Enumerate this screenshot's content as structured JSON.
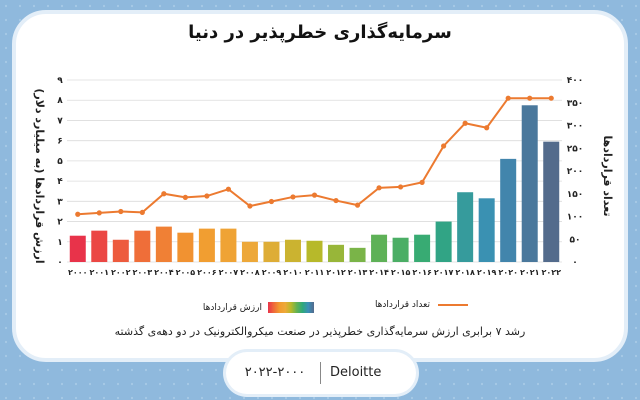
{
  "title": "سرمایه‌گذاری خطرپذیر در دنیا",
  "caption": "رشد ۷ برابری ارزش سرمایه‌گذاری خطرپذیر در صنعت میکروالکترونیک در دو دهه‌ی گذشته",
  "footer": {
    "source": "Deloitte",
    "range": "۲۰۲۲-۲۰۰۰"
  },
  "colors": {
    "background": "#8fb9dd",
    "line": "#ec7a30",
    "bar_gradient": [
      "#e8334a",
      "#ef6a3a",
      "#f29b2f",
      "#eda93a",
      "#b7b92a",
      "#63b253",
      "#2fa97a",
      "#3b8fb8",
      "#536b8c"
    ]
  },
  "chart_data": {
    "type": "bar",
    "categories": [
      "۲۰۰۰",
      "۲۰۰۱",
      "۲۰۰۲",
      "۲۰۰۳",
      "۲۰۰۴",
      "۲۰۰۵",
      "۲۰۰۶",
      "۲۰۰۷",
      "۲۰۰۸",
      "۲۰۰۹",
      "۲۰۱۰",
      "۲۰۱۱",
      "۲۰۱۲",
      "۲۰۱۳",
      "۲۰۱۴",
      "۲۰۱۵",
      "۲۰۱۶",
      "۲۰۱۷",
      "۲۰۱۸",
      "۲۰۱۹",
      "۲۰۲۰",
      "۲۰۲۱",
      "۲۰۲۲"
    ],
    "series": [
      {
        "name": "ارزش قراردادها",
        "type": "bar",
        "axis": "left",
        "values": [
          1.3,
          1.55,
          1.1,
          1.55,
          1.75,
          1.45,
          1.65,
          1.65,
          1.0,
          1.0,
          1.1,
          1.05,
          0.85,
          0.7,
          1.35,
          1.2,
          1.35,
          2.0,
          3.45,
          3.15,
          5.1,
          7.75,
          5.95
        ]
      },
      {
        "name": "تعداد قراردادها",
        "type": "line",
        "axis": "right",
        "values": [
          105,
          108,
          111,
          109,
          150,
          142,
          145,
          160,
          123,
          133,
          143,
          147,
          135,
          125,
          163,
          165,
          175,
          255,
          305,
          295,
          360,
          360,
          360
        ]
      }
    ],
    "ylabel": "ارزش قراردادها (به میلیارد دلار)",
    "ylabel_right": "تعداد قراردادها",
    "ylim": [
      0,
      9
    ],
    "ylim_right": [
      0,
      400
    ],
    "yticks": [
      "۰",
      "۱",
      "۲",
      "۳",
      "۴",
      "۵",
      "۶",
      "۷",
      "۸",
      "۹"
    ],
    "yticks_right": [
      "۰",
      "۵۰",
      "۱۰۰",
      "۱۵۰",
      "۲۰۰",
      "۲۵۰",
      "۳۰۰",
      "۳۵۰",
      "۴۰۰"
    ],
    "grid": true,
    "legend": [
      "تعداد قراردادها",
      "ارزش قراردادها"
    ],
    "legend_position": "bottom"
  }
}
